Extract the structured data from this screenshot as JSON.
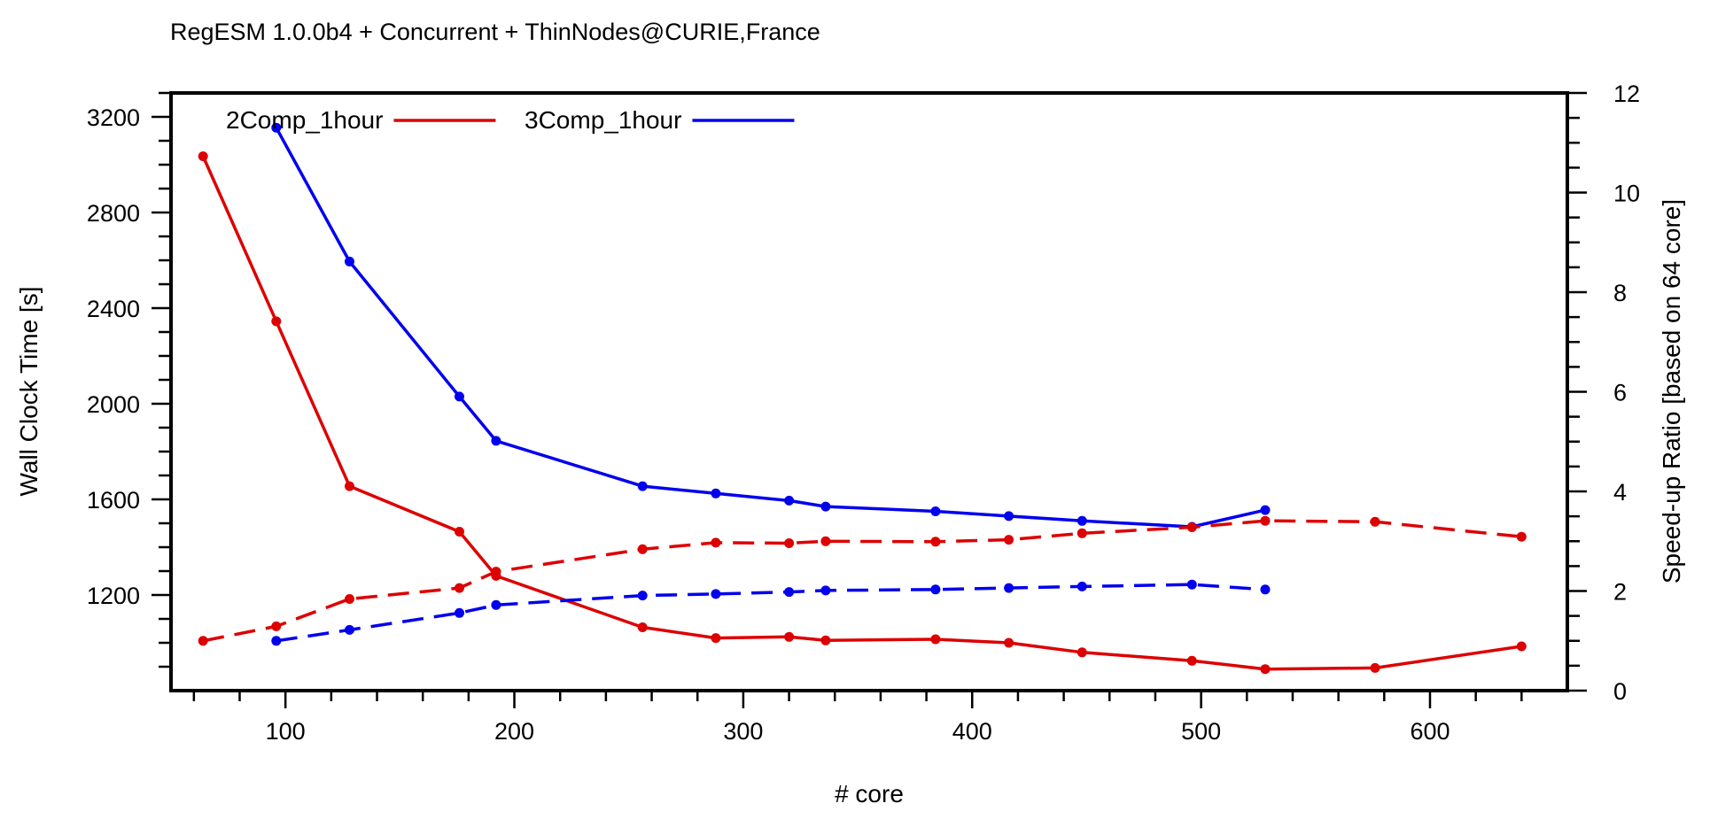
{
  "chart_data": {
    "type": "line",
    "title": "RegESM 1.0.0b4 + Concurrent + ThinNodes@CURIE,France",
    "xlabel": "# core",
    "ylabel": "Wall Clock Time [s]",
    "y2label": "Speed-up Ratio [based on 64 core]",
    "xlim": [
      50,
      660
    ],
    "ylim": [
      800,
      3300
    ],
    "y2lim": [
      0,
      12
    ],
    "xticks": [
      100,
      200,
      300,
      400,
      500,
      600
    ],
    "yticks": [
      1200,
      1600,
      2000,
      2400,
      2800,
      3200
    ],
    "y2ticks": [
      0,
      2,
      4,
      6,
      8,
      10,
      12
    ],
    "grid": false,
    "legend_position": "top-left",
    "series": [
      {
        "name": "2Comp_1hour",
        "color": "#dd0000",
        "style": "solid",
        "axis": "left",
        "x": [
          64,
          96,
          128,
          176,
          192,
          256,
          288,
          320,
          336,
          384,
          416,
          448,
          496,
          528,
          576,
          640
        ],
        "y": [
          3035,
          2345,
          1655,
          1465,
          1280,
          1065,
          1020,
          1025,
          1010,
          1015,
          1000,
          960,
          925,
          890,
          895,
          985
        ]
      },
      {
        "name": "3Comp_1hour",
        "color": "#0000ee",
        "style": "solid",
        "axis": "left",
        "x": [
          96,
          128,
          176,
          192,
          256,
          288,
          320,
          336,
          384,
          416,
          448,
          496,
          528
        ],
        "y": [
          3155,
          2595,
          2030,
          1845,
          1655,
          1625,
          1595,
          1570,
          1550,
          1530,
          1510,
          1485,
          1555
        ]
      },
      {
        "color": "#dd0000",
        "style": "dashed",
        "axis": "right",
        "x": [
          64,
          96,
          128,
          176,
          192,
          256,
          288,
          320,
          336,
          384,
          416,
          448,
          496,
          528,
          576,
          640
        ],
        "y": [
          1.0,
          1.29,
          1.84,
          2.06,
          2.39,
          2.84,
          2.97,
          2.96,
          3.0,
          2.99,
          3.03,
          3.16,
          3.28,
          3.41,
          3.39,
          3.09
        ]
      },
      {
        "color": "#0000ee",
        "style": "dashed",
        "axis": "right",
        "x": [
          96,
          128,
          176,
          192,
          256,
          288,
          320,
          336,
          384,
          416,
          448,
          496,
          528
        ],
        "y": [
          1.0,
          1.22,
          1.56,
          1.72,
          1.91,
          1.94,
          1.98,
          2.01,
          2.03,
          2.06,
          2.09,
          2.13,
          2.03
        ]
      }
    ]
  }
}
